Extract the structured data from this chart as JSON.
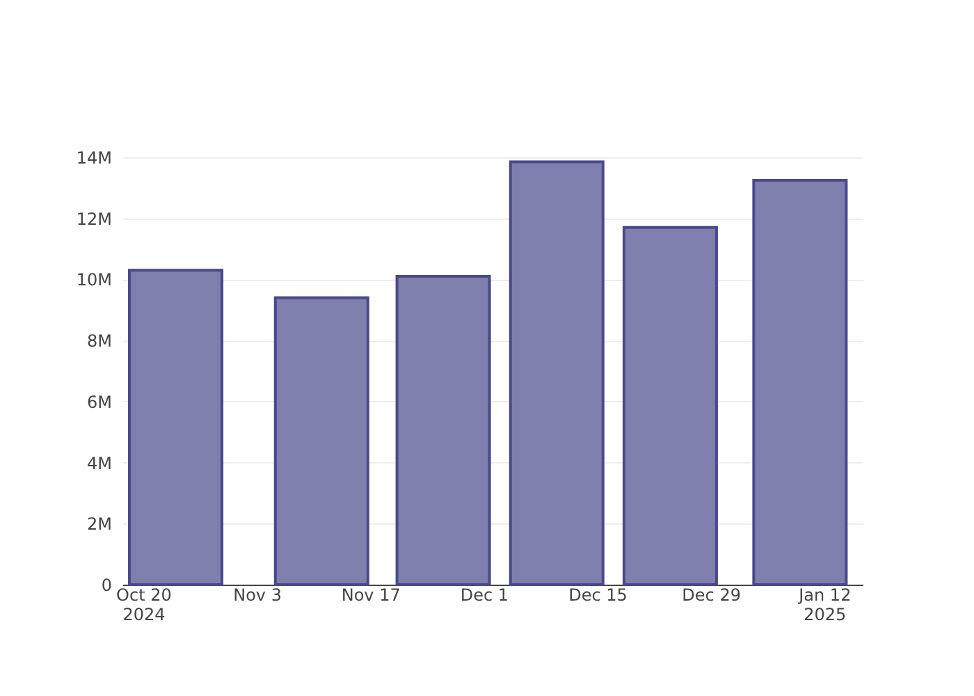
{
  "chart_data": {
    "type": "bar",
    "x": [
      "2024-10-24",
      "2024-11-11",
      "2024-11-26",
      "2024-12-10",
      "2024-12-24",
      "2025-01-09"
    ],
    "values": [
      10300000,
      9400000,
      10100000,
      13850000,
      11700000,
      13250000
    ],
    "color": "#7f7fae",
    "xlim": [
      "2024-10-18T07:00",
      "2025-01-15T21:00"
    ],
    "xticks": [
      {
        "value": "2024-10-20",
        "label": "Oct 20\n2024"
      },
      {
        "value": "2024-11-03",
        "label": "Nov 3"
      },
      {
        "value": "2024-11-17",
        "label": "Nov 17"
      },
      {
        "value": "2024-12-01",
        "label": "Dec 1"
      },
      {
        "value": "2024-12-15",
        "label": "Dec 15"
      },
      {
        "value": "2024-12-29",
        "label": "Dec 29"
      },
      {
        "value": "2025-01-12",
        "label": "Jan 12\n2025"
      }
    ],
    "ylim": [
      0,
      14000000
    ],
    "yticks": [
      0,
      {
        "value": 2000000,
        "label": "2M"
      },
      {
        "value": 4000000,
        "label": "4M"
      },
      {
        "value": 6000000,
        "label": "6M"
      },
      {
        "value": 8000000,
        "label": "8M"
      },
      {
        "value": 10000000,
        "label": "10M"
      },
      {
        "value": 12000000,
        "label": "12M"
      },
      {
        "value": 14000000,
        "label": "14M"
      }
    ],
    "grid": "y"
  }
}
